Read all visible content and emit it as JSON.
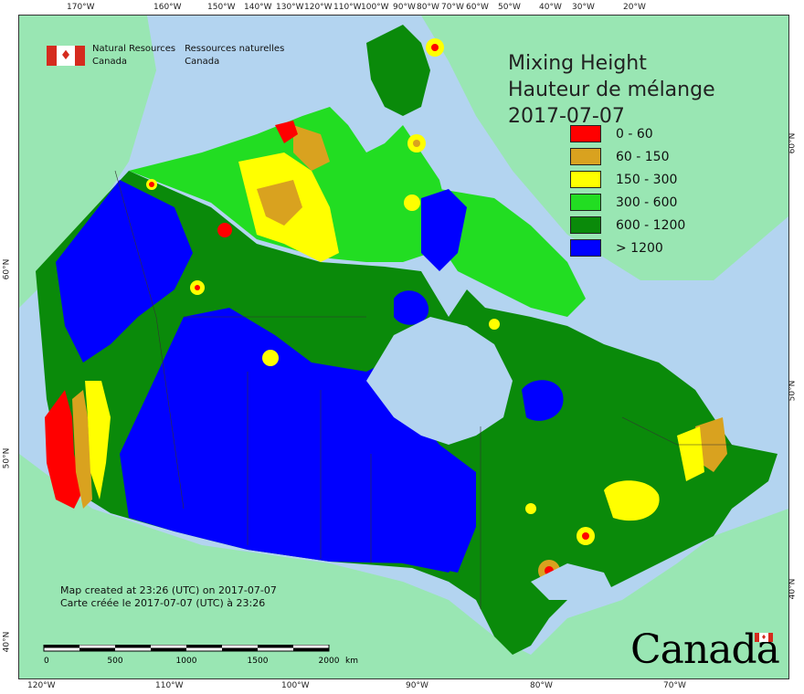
{
  "title": {
    "line1": "Mixing Height",
    "line2": "Hauteur de mélange",
    "date": "2017-07-07"
  },
  "agency": {
    "en_line1": "Natural Resources",
    "en_line2": "Canada",
    "fr_line1": "Ressources naturelles",
    "fr_line2": "Canada"
  },
  "legend": [
    {
      "label": "0 - 60",
      "color": "#ff0000"
    },
    {
      "label": "60 - 150",
      "color": "#d9a21f"
    },
    {
      "label": "150 - 300",
      "color": "#ffff00"
    },
    {
      "label": "300 - 600",
      "color": "#22dd22"
    },
    {
      "label": "600 - 1200",
      "color": "#0a8a0a"
    },
    {
      "label": "> 1200",
      "color": "#0000ff"
    }
  ],
  "graticule": {
    "top": [
      "170°W",
      "160°W",
      "150°W",
      "140°W",
      "130°W",
      "120°W",
      "110°W",
      "100°W",
      "90°W",
      "80°W",
      "70°W",
      "60°W",
      "50°W",
      "40°W",
      "30°W",
      "20°W"
    ],
    "bottom": [
      "120°W",
      "110°W",
      "100°W",
      "90°W",
      "80°W",
      "70°W"
    ],
    "left": [
      "60°N",
      "50°N",
      "40°N"
    ],
    "right": [
      "60°N",
      "50°N",
      "40°N"
    ]
  },
  "credits": {
    "line1": "Map created at 23:26 (UTC) on 2017-07-07",
    "line2": "Carte créée le 2017-07-07 (UTC) à 23:26"
  },
  "scale": {
    "ticks": [
      "0",
      "500",
      "1000",
      "1500",
      "2000"
    ],
    "unit": "km"
  },
  "wordmark": "Canada",
  "colors": {
    "ocean": "#b3d4f0",
    "other_land": "#99e6b3"
  }
}
